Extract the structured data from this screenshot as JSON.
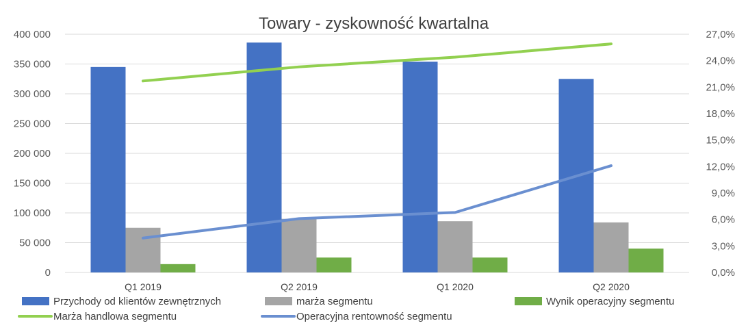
{
  "chart_data": {
    "type": "bar",
    "title": "Towary - zyskowność kwartalna",
    "categories": [
      "Q1 2019",
      "Q2 2019",
      "Q1 2020",
      "Q2 2020"
    ],
    "y_left": {
      "lim": [
        0,
        400000
      ],
      "ticks": [
        "0",
        "50 000",
        "100 000",
        "150 000",
        "200 000",
        "250 000",
        "300 000",
        "350 000",
        "400 000"
      ]
    },
    "y_right": {
      "lim": [
        0,
        27
      ],
      "ticks": [
        "0,0%",
        "3,0%",
        "6,0%",
        "9,0%",
        "12,0%",
        "15,0%",
        "18,0%",
        "21,0%",
        "24,0%",
        "27,0%"
      ]
    },
    "grid": true,
    "legend_position": "bottom",
    "series": [
      {
        "name": "Przychody od klientów zewnętrznych",
        "kind": "bar",
        "axis": "left",
        "color": "#4472C4",
        "values": [
          345000,
          386000,
          354000,
          325000
        ]
      },
      {
        "name": "marża segmentu",
        "kind": "bar",
        "axis": "left",
        "color": "#A5A5A5",
        "values": [
          75000,
          90000,
          86000,
          84000
        ]
      },
      {
        "name": "Wynik operacyjny segmentu",
        "kind": "bar",
        "axis": "left",
        "color": "#70AD47",
        "values": [
          14000,
          25000,
          25000,
          40000
        ]
      },
      {
        "name": "Marża handlowa segmentu",
        "kind": "line",
        "axis": "right",
        "color": "#92D050",
        "values": [
          21.7,
          23.3,
          24.4,
          25.9
        ]
      },
      {
        "name": "Operacyjna rentowność segmentu",
        "kind": "line",
        "axis": "right",
        "color": "#6A8FD0",
        "values": [
          3.9,
          6.1,
          6.8,
          12.1
        ]
      }
    ]
  }
}
